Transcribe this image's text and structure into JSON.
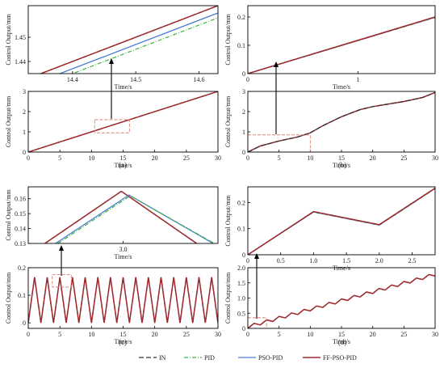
{
  "colors": {
    "IN": "#333333",
    "PID": "#3fb23f",
    "PSO-PID": "#4a7fd4",
    "FF-PSO-PID": "#a0282c",
    "zoom_box": "#d9827a",
    "arrow": "#000000"
  },
  "legend": [
    {
      "name": "IN",
      "style": "dash"
    },
    {
      "name": "PID",
      "style": "dashdot"
    },
    {
      "name": "PSO-PID",
      "style": "solid"
    },
    {
      "name": "FF-PSO-PID",
      "style": "solid"
    }
  ],
  "panel_labels": [
    "(a)",
    "(b)",
    "(c)",
    "(d)"
  ],
  "chart_data": [
    {
      "id": "a-zoom",
      "type": "line",
      "xlabel": "Time/s",
      "ylabel": "Control Output/mm",
      "xlim": [
        14.33,
        14.63
      ],
      "ylim": [
        1.435,
        1.463
      ],
      "xticks": [
        14.4,
        14.5,
        14.6
      ],
      "xtick_labels": [
        "14.4",
        "14.5",
        "14.6"
      ],
      "yticks": [
        1.44,
        1.45
      ],
      "ytick_labels": [
        "1.44",
        "1.45"
      ],
      "series": [
        {
          "name": "IN",
          "x": [
            14.33,
            14.63
          ],
          "y": [
            1.433,
            1.463
          ]
        },
        {
          "name": "FF-PSO-PID",
          "x": [
            14.33,
            14.63
          ],
          "y": [
            1.433,
            1.463
          ]
        },
        {
          "name": "PSO-PID",
          "x": [
            14.36,
            14.63
          ],
          "y": [
            1.433,
            1.46
          ]
        },
        {
          "name": "PID",
          "x": [
            14.38,
            14.63
          ],
          "y": [
            1.433,
            1.458
          ]
        }
      ]
    },
    {
      "id": "a-main",
      "type": "line",
      "xlabel": "Time/s",
      "ylabel": "Control Output/mm",
      "xlim": [
        0,
        30
      ],
      "ylim": [
        0,
        3
      ],
      "xticks": [
        0,
        5,
        10,
        15,
        20,
        25,
        30
      ],
      "xtick_labels": [
        "0",
        "5",
        "10",
        "15",
        "20",
        "25",
        "30"
      ],
      "yticks": [
        0,
        1,
        2,
        3
      ],
      "ytick_labels": [
        "0",
        "1",
        "2",
        "3"
      ],
      "zoom_box": {
        "x": [
          10.5,
          16
        ],
        "y": [
          0.95,
          1.6
        ]
      },
      "series": [
        {
          "name": "IN",
          "x": [
            0,
            30
          ],
          "y": [
            0,
            3
          ]
        },
        {
          "name": "FF-PSO-PID",
          "x": [
            0,
            30
          ],
          "y": [
            0,
            3
          ]
        }
      ]
    },
    {
      "id": "b-zoom",
      "type": "line",
      "xlabel": "Time/s",
      "ylabel": "Control Output/mm",
      "xlim": [
        0,
        1.7
      ],
      "ylim": [
        0,
        0.24
      ],
      "xticks": [
        0,
        1
      ],
      "xtick_labels": [
        "0",
        "1"
      ],
      "yticks": [
        0,
        0.1,
        0.2
      ],
      "ytick_labels": [
        "0",
        "0.1",
        "0.2"
      ],
      "series": [
        {
          "name": "IN",
          "x": [
            0,
            1.7
          ],
          "y": [
            0,
            0.2
          ]
        },
        {
          "name": "PID",
          "x": [
            0,
            1.7
          ],
          "y": [
            0,
            0.198
          ]
        },
        {
          "name": "PSO-PID",
          "x": [
            0,
            1.7
          ],
          "y": [
            0,
            0.199
          ]
        },
        {
          "name": "FF-PSO-PID",
          "x": [
            0,
            1.7
          ],
          "y": [
            0,
            0.2
          ]
        }
      ]
    },
    {
      "id": "b-main",
      "type": "line",
      "xlabel": "Time/s",
      "ylabel": "Control Output/mm",
      "xlim": [
        0,
        30
      ],
      "ylim": [
        0,
        3
      ],
      "xticks": [
        0,
        5,
        10,
        15,
        20,
        25,
        30
      ],
      "xtick_labels": [
        "0",
        "5",
        "10",
        "15",
        "20",
        "25",
        "30"
      ],
      "yticks": [
        0,
        1,
        2,
        3
      ],
      "ytick_labels": [
        "0",
        "1",
        "2",
        "3"
      ],
      "zoom_box": {
        "x": [
          0,
          10
        ],
        "y": [
          0,
          0.85
        ]
      },
      "series": [
        {
          "name": "FF-PSO-PID",
          "x": [
            0,
            2,
            5,
            8,
            10,
            12,
            15,
            18,
            20,
            22,
            25,
            28,
            30
          ],
          "y": [
            0,
            0.3,
            0.55,
            0.75,
            0.95,
            1.3,
            1.75,
            2.1,
            2.25,
            2.35,
            2.5,
            2.7,
            2.95
          ]
        },
        {
          "name": "IN",
          "x": [
            0,
            2,
            5,
            8,
            10,
            12,
            15,
            18,
            20,
            22,
            25,
            28,
            30
          ],
          "y": [
            0,
            0.3,
            0.55,
            0.75,
            0.95,
            1.3,
            1.75,
            2.1,
            2.25,
            2.35,
            2.5,
            2.7,
            2.95
          ]
        }
      ]
    },
    {
      "id": "c-zoom",
      "type": "line",
      "xlabel": "Time/s",
      "ylabel": "Control Output/mm",
      "xlim": [
        2.84,
        3.16
      ],
      "ylim": [
        0.13,
        0.168
      ],
      "xticks": [
        3.0
      ],
      "xtick_labels": [
        "3.0"
      ],
      "yticks": [
        0.13,
        0.14,
        0.15,
        0.16
      ],
      "ytick_labels": [
        "0.13",
        "0.14",
        "0.15",
        "0.16"
      ],
      "series": [
        {
          "name": "IN",
          "x": [
            2.868,
            2.997,
            3.124
          ],
          "y": [
            0.13,
            0.165,
            0.13
          ]
        },
        {
          "name": "FF-PSO-PID",
          "x": [
            2.868,
            2.997,
            3.124
          ],
          "y": [
            0.13,
            0.165,
            0.13
          ]
        },
        {
          "name": "PSO-PID",
          "x": [
            2.886,
            3.01,
            3.152
          ],
          "y": [
            0.13,
            0.1625,
            0.13
          ]
        },
        {
          "name": "PID",
          "x": [
            2.89,
            3.012,
            3.154
          ],
          "y": [
            0.13,
            0.162,
            0.13
          ]
        }
      ]
    },
    {
      "id": "c-main",
      "type": "line",
      "xlabel": "Time/s",
      "ylabel": "Control Output/mm",
      "xlim": [
        0,
        30
      ],
      "ylim": [
        -0.02,
        0.2
      ],
      "xticks": [
        0,
        5,
        10,
        15,
        20,
        25,
        30
      ],
      "xtick_labels": [
        "0",
        "5",
        "10",
        "15",
        "20",
        "25",
        "30"
      ],
      "yticks": [
        0,
        0.1,
        0.2
      ],
      "ytick_labels": [
        "0",
        "0.1",
        "0.2"
      ],
      "zoom_box": {
        "x": [
          3.8,
          6.8
        ],
        "y": [
          0.13,
          0.175
        ]
      },
      "series": [
        {
          "name": "IN",
          "waveform": "triangle",
          "period": 2,
          "peak": 0.165,
          "peak_time": 1
        },
        {
          "name": "FF-PSO-PID",
          "waveform": "triangle",
          "period": 2,
          "peak": 0.165,
          "peak_time": 1
        }
      ]
    },
    {
      "id": "d-zoom",
      "type": "line",
      "xlabel": "Time/s",
      "ylabel": "Control Output/mm",
      "xlim": [
        0,
        2.85
      ],
      "ylim": [
        0,
        0.26
      ],
      "xticks": [
        0,
        0.5,
        1.0,
        1.5,
        2.0,
        2.5
      ],
      "xtick_labels": [
        "0",
        "0.5",
        "1.0",
        "1.5",
        "2.0",
        "2.5"
      ],
      "yticks": [
        0,
        0.1,
        0.2
      ],
      "ytick_labels": [
        "0",
        "0.1",
        "0.2"
      ],
      "series": [
        {
          "name": "IN",
          "x": [
            0,
            1,
            2,
            2.85
          ],
          "y": [
            0,
            0.165,
            0.115,
            0.255
          ]
        },
        {
          "name": "PID",
          "x": [
            0,
            1,
            2,
            2.85
          ],
          "y": [
            0,
            0.163,
            0.113,
            0.253
          ]
        },
        {
          "name": "PSO-PID",
          "x": [
            0,
            1,
            2,
            2.85
          ],
          "y": [
            0,
            0.164,
            0.114,
            0.254
          ]
        },
        {
          "name": "FF-PSO-PID",
          "x": [
            0,
            1,
            2,
            2.85
          ],
          "y": [
            0,
            0.165,
            0.115,
            0.255
          ]
        }
      ]
    },
    {
      "id": "d-main",
      "type": "line",
      "xlabel": "Time/s",
      "ylabel": "Control Output/mm",
      "xlim": [
        0,
        30
      ],
      "ylim": [
        0,
        2
      ],
      "xticks": [
        0,
        5,
        10,
        15,
        20,
        25,
        30
      ],
      "xtick_labels": [
        "0",
        "5",
        "10",
        "15",
        "20",
        "25",
        "30"
      ],
      "yticks": [
        0,
        0.5,
        1.0,
        1.5,
        2.0
      ],
      "ytick_labels": [
        "0",
        "0.5",
        "1.0",
        "1.5",
        "2.0"
      ],
      "zoom_box": {
        "x": [
          0,
          3
        ],
        "y": [
          0,
          0.35
        ]
      },
      "series": [
        {
          "name": "IN",
          "waveform": "ramp-sawtooth",
          "period": 2,
          "rise": 0.165,
          "fall": 0.05
        },
        {
          "name": "FF-PSO-PID",
          "waveform": "ramp-sawtooth",
          "period": 2,
          "rise": 0.165,
          "fall": 0.05
        }
      ]
    }
  ]
}
